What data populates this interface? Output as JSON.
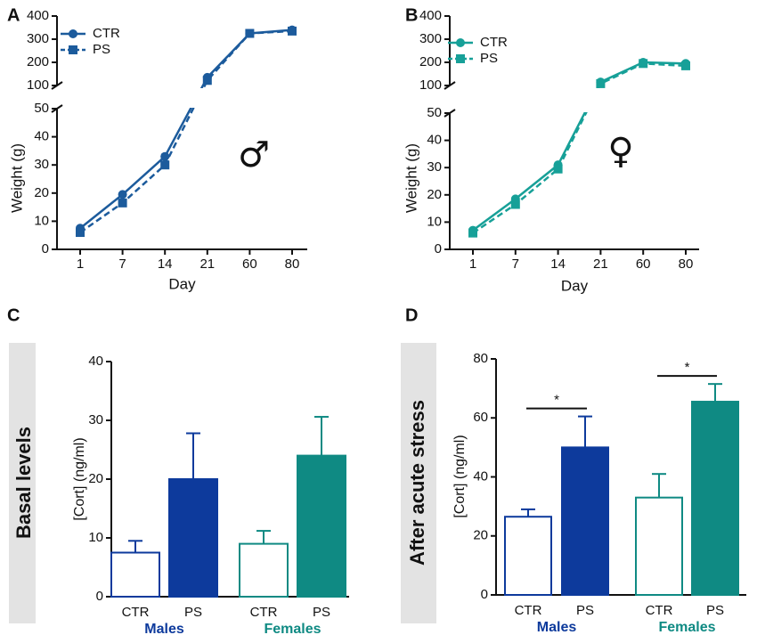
{
  "chart_data": [
    {
      "type": "line",
      "label": "A",
      "ylabel": "Weight (g)",
      "xlabel": "Day",
      "annotation": "♂",
      "categories": [
        "1",
        "7",
        "14",
        "21",
        "60",
        "80"
      ],
      "ylim": [
        0,
        400
      ],
      "ybreak": [
        50,
        100
      ],
      "yticks": [
        0,
        10,
        20,
        30,
        40,
        50,
        100,
        200,
        300,
        400
      ],
      "series": [
        {
          "name": "CTR",
          "color": "#1c5b9c",
          "marker": "circle",
          "linestyle": "solid",
          "values": [
            7.5,
            19.5,
            33,
            135,
            325,
            340
          ]
        },
        {
          "name": "PS",
          "color": "#1c5b9c",
          "marker": "square",
          "linestyle": "dashed",
          "values": [
            6,
            16.5,
            30,
            122,
            325,
            335
          ]
        }
      ]
    },
    {
      "type": "line",
      "label": "B",
      "ylabel": "Weight (g)",
      "xlabel": "Day",
      "annotation": "♀",
      "categories": [
        "1",
        "7",
        "14",
        "21",
        "60",
        "80"
      ],
      "ylim": [
        0,
        400
      ],
      "ybreak": [
        50,
        100
      ],
      "yticks": [
        0,
        10,
        20,
        30,
        40,
        50,
        100,
        200,
        300,
        400
      ],
      "series": [
        {
          "name": "CTR",
          "color": "#17a098",
          "marker": "circle",
          "linestyle": "solid",
          "values": [
            7,
            18.5,
            31,
            115,
            200,
            195
          ]
        },
        {
          "name": "PS",
          "color": "#17a098",
          "marker": "square",
          "linestyle": "dashed",
          "values": [
            6,
            16.5,
            29.5,
            108,
            195,
            185
          ]
        }
      ]
    },
    {
      "type": "bar",
      "label": "C",
      "side_label": "Basal levels",
      "ylabel": "[Cort] (ng/ml)",
      "categories": [
        "CTR",
        "PS",
        "CTR",
        "PS"
      ],
      "values": [
        7.5,
        20,
        9,
        24
      ],
      "errors": [
        2,
        7.8,
        2.2,
        6.6
      ],
      "filled": [
        false,
        true,
        false,
        true
      ],
      "groups": [
        {
          "name": "Males",
          "color": "#0d3a9c"
        },
        {
          "name": "Females",
          "color": "#0f8a83"
        }
      ],
      "ylim": [
        0,
        40
      ],
      "yticks": [
        0,
        10,
        20,
        30,
        40
      ]
    },
    {
      "type": "bar",
      "label": "D",
      "side_label": "After acute stress",
      "ylabel": "[Cort] (ng/ml)",
      "categories": [
        "CTR",
        "PS",
        "CTR",
        "PS"
      ],
      "values": [
        26.5,
        50,
        33,
        65.5
      ],
      "errors": [
        2.5,
        10.5,
        8,
        6
      ],
      "filled": [
        false,
        true,
        false,
        true
      ],
      "groups": [
        {
          "name": "Males",
          "color": "#0d3a9c"
        },
        {
          "name": "Females",
          "color": "#0f8a83"
        }
      ],
      "significance": [
        {
          "label": "*",
          "bars": [
            0,
            1
          ]
        },
        {
          "label": "*",
          "bars": [
            2,
            3
          ]
        }
      ],
      "ylim": [
        0,
        80
      ],
      "yticks": [
        0,
        20,
        40,
        60,
        80
      ]
    }
  ]
}
